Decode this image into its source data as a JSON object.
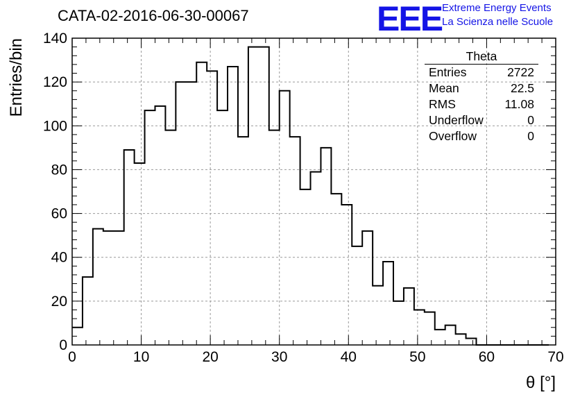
{
  "header": {
    "title": "CATA-02-2016-06-30-00067",
    "logo_text": "EEE",
    "logo_line1": "Extreme Energy Events",
    "logo_line2": "La Scienza nelle Scuole"
  },
  "stats": {
    "title": "Theta",
    "rows": [
      {
        "label": "Entries",
        "value": "2722"
      },
      {
        "label": "Mean",
        "value": "22.5"
      },
      {
        "label": "RMS",
        "value": "11.08"
      },
      {
        "label": "Underflow",
        "value": "0"
      },
      {
        "label": "Overflow",
        "value": "0"
      }
    ]
  },
  "chart_data": {
    "type": "bar",
    "style": "step-histogram",
    "xlabel": "θ [°]",
    "ylabel": "Entries/bin",
    "xlim": [
      0,
      70
    ],
    "ylim": [
      0,
      140
    ],
    "grid": true,
    "x_ticks": [
      0,
      10,
      20,
      30,
      40,
      50,
      60,
      70
    ],
    "y_ticks": [
      0,
      20,
      40,
      60,
      80,
      100,
      120,
      140
    ],
    "bin_width": 1.5,
    "bin_edges_start": 0,
    "values": [
      8,
      31,
      53,
      52,
      52,
      89,
      83,
      107,
      109,
      98,
      120,
      120,
      129,
      125,
      107,
      127,
      95,
      136,
      136,
      98,
      116,
      95,
      71,
      79,
      90,
      69,
      64,
      45,
      52,
      27,
      38,
      20,
      26,
      16,
      15,
      7,
      9,
      5,
      3,
      0,
      0,
      0,
      0,
      0,
      0,
      0
    ],
    "colors": {
      "line": "#000000",
      "grid": "#999999",
      "logo": "#1414e6"
    }
  }
}
